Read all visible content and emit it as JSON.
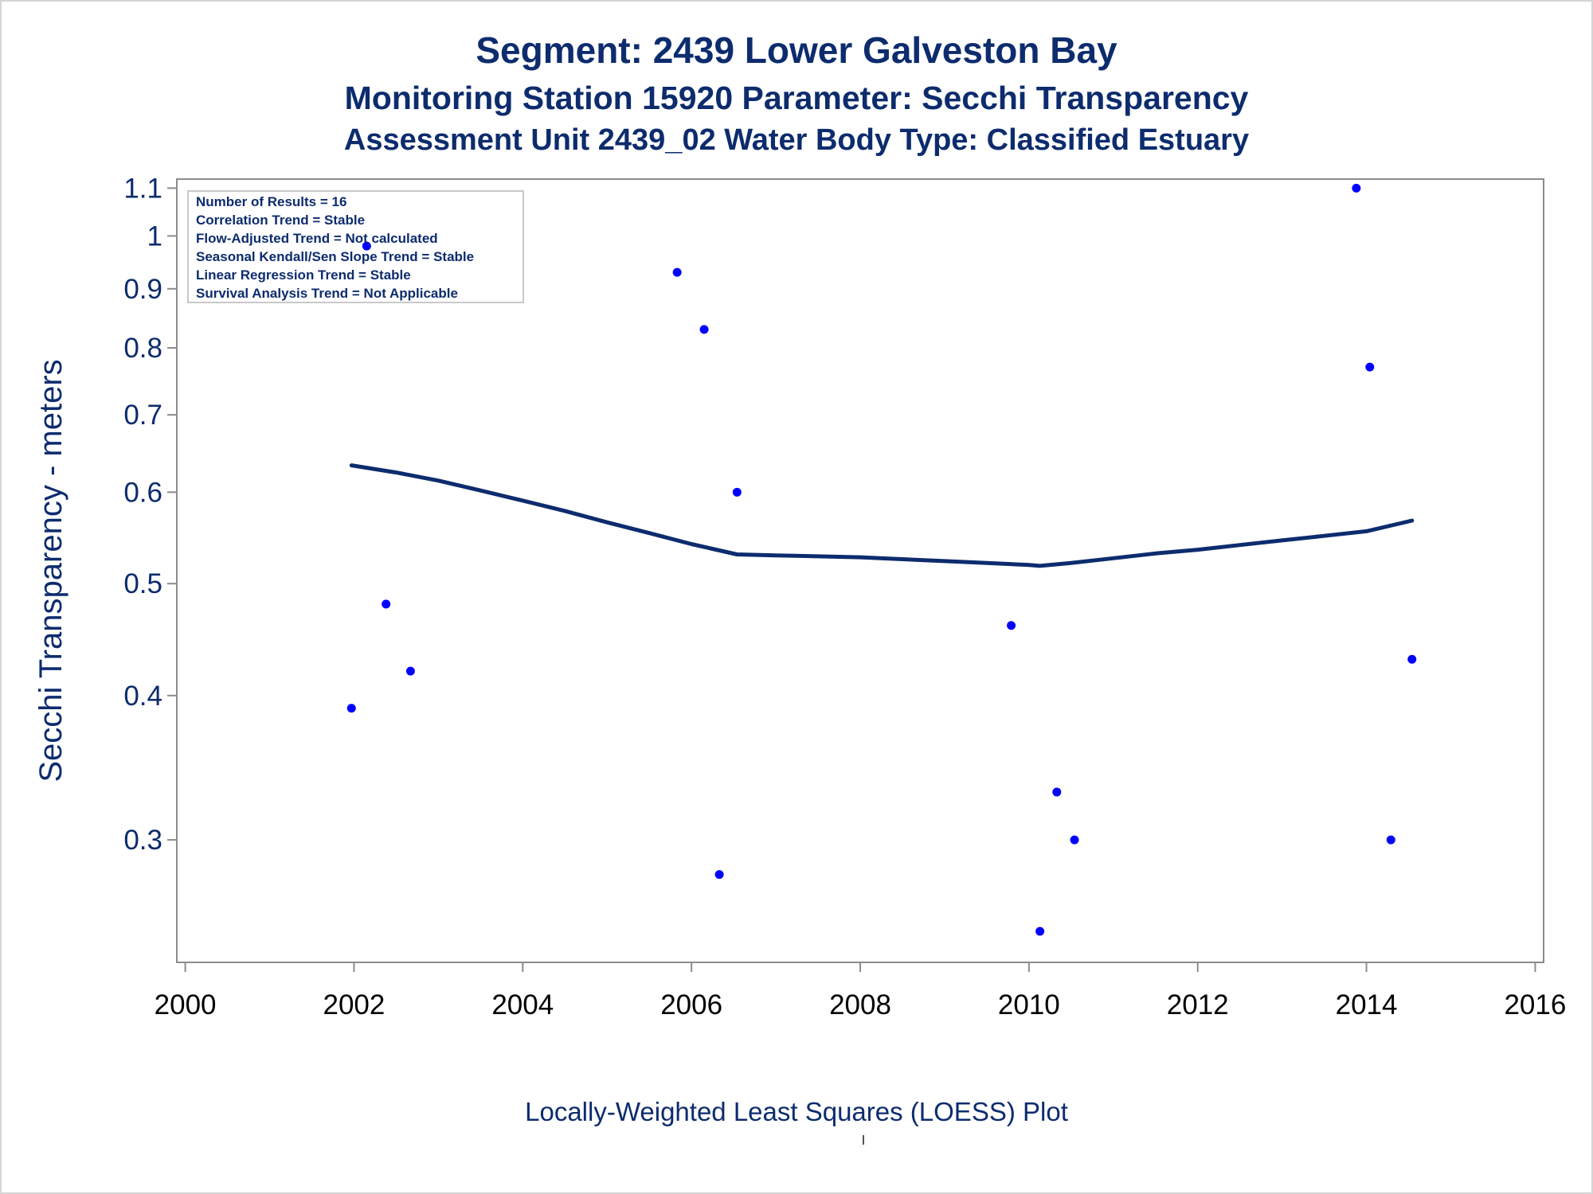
{
  "titles": {
    "line1": "Segment: 2439  Lower Galveston Bay",
    "line2": "Monitoring Station 15920 Parameter: Secchi Transparency",
    "line3": "Assessment Unit 2439_02   Water Body Type: Classified Estuary"
  },
  "footnote": "Locally-Weighted Least Squares (LOESS) Plot",
  "stats_box": [
    "Number of Results = 16",
    "Correlation Trend = Stable",
    "Flow-Adjusted Trend = Not calculated",
    "Seasonal Kendall/Sen Slope Trend = Stable",
    "Linear Regression Trend = Stable",
    "Survival Analysis Trend = Not Applicable"
  ],
  "colors": {
    "text": "#0d2c6e",
    "points": "#0000ff",
    "loess": "#0d2c6e",
    "axis": "#8c8c8c"
  },
  "chart_data": {
    "type": "scatter",
    "title": "Segment: 2439  Lower Galveston Bay",
    "ylabel": "Secchi Transparency - meters",
    "xlabel": "",
    "x_scale": "linear",
    "y_scale": "log",
    "xlim": [
      1999.9,
      2016.1
    ],
    "ylim": [
      0.235,
      1.12
    ],
    "x_ticks": [
      2000,
      2002,
      2004,
      2006,
      2008,
      2010,
      2012,
      2014,
      2016
    ],
    "x_tick_labels": [
      "2000",
      "2002",
      "2004",
      "2006",
      "2008",
      "2010",
      "2012",
      "2014",
      "2016"
    ],
    "y_ticks": [
      0.3,
      0.4,
      0.5,
      0.6,
      0.7,
      0.8,
      0.9,
      1.0,
      1.1
    ],
    "y_tick_labels": [
      "0.3",
      "0.4",
      "0.5",
      "0.6",
      "0.7",
      "0.8",
      "0.9",
      "1",
      "1.1"
    ],
    "grid": false,
    "legend": "none",
    "points": [
      {
        "x": 2001.97,
        "y": 0.39
      },
      {
        "x": 2002.15,
        "y": 0.98
      },
      {
        "x": 2002.38,
        "y": 0.48
      },
      {
        "x": 2002.67,
        "y": 0.42
      },
      {
        "x": 2005.83,
        "y": 0.93
      },
      {
        "x": 2006.15,
        "y": 0.83
      },
      {
        "x": 2006.33,
        "y": 0.28
      },
      {
        "x": 2006.54,
        "y": 0.6
      },
      {
        "x": 2009.79,
        "y": 0.46
      },
      {
        "x": 2010.13,
        "y": 0.25
      },
      {
        "x": 2010.33,
        "y": 0.33
      },
      {
        "x": 2010.54,
        "y": 0.3
      },
      {
        "x": 2013.88,
        "y": 1.1
      },
      {
        "x": 2014.04,
        "y": 0.77
      },
      {
        "x": 2014.29,
        "y": 0.3
      },
      {
        "x": 2014.54,
        "y": 0.43
      }
    ],
    "loess": {
      "x": [
        2001.97,
        2002.5,
        2003.0,
        2003.5,
        2004.0,
        2004.5,
        2005.0,
        2005.5,
        2006.0,
        2006.54,
        2007.0,
        2007.5,
        2008.0,
        2008.5,
        2009.0,
        2009.5,
        2010.0,
        2010.13,
        2010.5,
        2011.0,
        2011.5,
        2012.0,
        2012.5,
        2013.0,
        2013.5,
        2014.0,
        2014.54
      ],
      "y": [
        0.633,
        0.624,
        0.614,
        0.602,
        0.59,
        0.578,
        0.565,
        0.553,
        0.541,
        0.53,
        0.529,
        0.528,
        0.527,
        0.525,
        0.523,
        0.521,
        0.519,
        0.518,
        0.521,
        0.526,
        0.531,
        0.535,
        0.54,
        0.545,
        0.55,
        0.555,
        0.567
      ]
    }
  }
}
